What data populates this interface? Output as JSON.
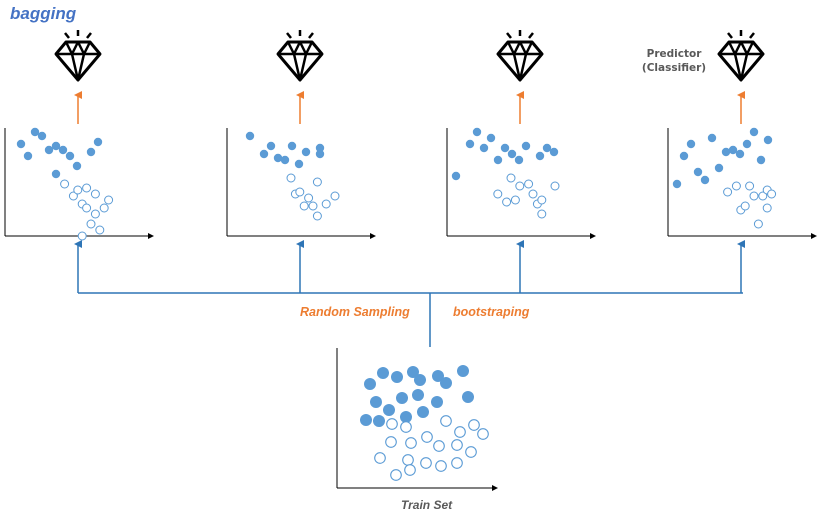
{
  "title": "bagging",
  "predictor_label_line1": "Predictor",
  "predictor_label_line2": "(Classifier)",
  "sampling_label": "Random Sampling",
  "bootstrap_label": "bootstraping",
  "train_set_label": "Train Set",
  "colors": {
    "accent_blue": "#4472C4",
    "point_blue": "#5B9BD5",
    "orange": "#ED7D31",
    "axis": "#000000",
    "muted_text": "#595959"
  },
  "icons": [
    "diamond-icon"
  ],
  "panels": [
    {
      "name": "bootstrap-sample-1",
      "filled": [
        [
          -2,
          108
        ],
        [
          -1,
          120
        ],
        [
          0,
          96
        ],
        [
          1,
          100
        ],
        [
          2,
          114
        ],
        [
          3,
          110
        ],
        [
          3,
          138
        ],
        [
          4,
          114
        ],
        [
          5,
          120
        ],
        [
          6,
          130
        ],
        [
          8,
          116
        ],
        [
          9,
          106
        ]
      ],
      "hollow": [
        [
          4,
          148
        ],
        [
          6,
          160
        ],
        [
          7,
          154
        ],
        [
          8,
          168
        ],
        [
          8,
          200
        ],
        [
          9,
          152
        ],
        [
          9,
          172
        ],
        [
          10,
          188
        ],
        [
          11,
          158
        ],
        [
          11,
          178
        ],
        [
          12,
          194
        ],
        [
          13,
          172
        ],
        [
          14,
          164
        ]
      ]
    },
    {
      "name": "bootstrap-sample-2",
      "filled": [
        [
          -1,
          100
        ],
        [
          1,
          118
        ],
        [
          2,
          110
        ],
        [
          3,
          122
        ],
        [
          4,
          124
        ],
        [
          5,
          110
        ],
        [
          6,
          128
        ],
        [
          7,
          116
        ],
        [
          9,
          118
        ],
        [
          9,
          112
        ]
      ],
      "hollow": [
        [
          5,
          142
        ],
        [
          6,
          158
        ],
        [
          7,
          156
        ],
        [
          8,
          170
        ],
        [
          9,
          162
        ],
        [
          10,
          170
        ],
        [
          11,
          180
        ],
        [
          11,
          146
        ],
        [
          13,
          168
        ],
        [
          15,
          160
        ]
      ]
    },
    {
      "name": "bootstrap-sample-3",
      "filled": [
        [
          -3,
          140
        ],
        [
          -1,
          108
        ],
        [
          0,
          96
        ],
        [
          1,
          112
        ],
        [
          2,
          102
        ],
        [
          3,
          124
        ],
        [
          4,
          112
        ],
        [
          5,
          118
        ],
        [
          6,
          124
        ],
        [
          7,
          110
        ],
        [
          9,
          120
        ],
        [
          10,
          112
        ],
        [
          11,
          116
        ]
      ],
      "hollow": [
        [
          2,
          158
        ],
        [
          4,
          166
        ],
        [
          5,
          142
        ],
        [
          6,
          164
        ],
        [
          7,
          150
        ],
        [
          9,
          148
        ],
        [
          10,
          158
        ],
        [
          11,
          168
        ],
        [
          12,
          164
        ],
        [
          12,
          178
        ],
        [
          15,
          150
        ]
      ]
    },
    {
      "name": "bootstrap-sample-4",
      "filled": [
        [
          -3,
          148
        ],
        [
          -2,
          120
        ],
        [
          -1,
          108
        ],
        [
          0,
          136
        ],
        [
          1,
          144
        ],
        [
          2,
          102
        ],
        [
          3,
          132
        ],
        [
          4,
          116
        ],
        [
          5,
          114
        ],
        [
          6,
          118
        ],
        [
          7,
          108
        ],
        [
          8,
          96
        ],
        [
          9,
          124
        ],
        [
          10,
          104
        ]
      ],
      "hollow": [
        [
          4,
          156
        ],
        [
          6,
          150
        ],
        [
          7,
          174
        ],
        [
          8,
          170
        ],
        [
          9,
          150
        ],
        [
          10,
          160
        ],
        [
          11,
          188
        ],
        [
          12,
          160
        ],
        [
          13,
          172
        ],
        [
          13,
          154
        ],
        [
          14,
          158
        ]
      ]
    }
  ],
  "train_set": {
    "filled": [
      [
        1,
        120
      ],
      [
        2,
        122
      ],
      [
        3,
        114
      ],
      [
        4,
        118
      ],
      [
        5,
        120
      ],
      [
        6,
        112
      ],
      [
        6,
        134
      ],
      [
        7,
        126
      ],
      [
        8,
        116
      ],
      [
        9,
        126
      ],
      [
        10,
        112
      ],
      [
        11,
        120
      ],
      [
        12,
        108
      ],
      [
        13,
        128
      ],
      [
        14,
        120
      ],
      [
        15,
        118
      ],
      [
        16,
        122
      ],
      [
        17,
        130
      ],
      [
        18,
        110
      ],
      [
        19,
        126
      ],
      [
        20,
        120
      ]
    ],
    "hollow": [
      [
        12,
        150
      ],
      [
        13,
        162
      ],
      [
        14,
        170
      ],
      [
        15,
        158
      ],
      [
        16,
        154
      ],
      [
        17,
        168
      ],
      [
        18,
        176
      ],
      [
        19,
        150
      ],
      [
        20,
        162
      ],
      [
        21,
        156
      ],
      [
        22,
        172
      ],
      [
        23,
        164
      ],
      [
        24,
        158
      ],
      [
        25,
        168
      ],
      [
        26,
        176
      ],
      [
        27,
        160
      ],
      [
        28,
        172
      ]
    ]
  }
}
